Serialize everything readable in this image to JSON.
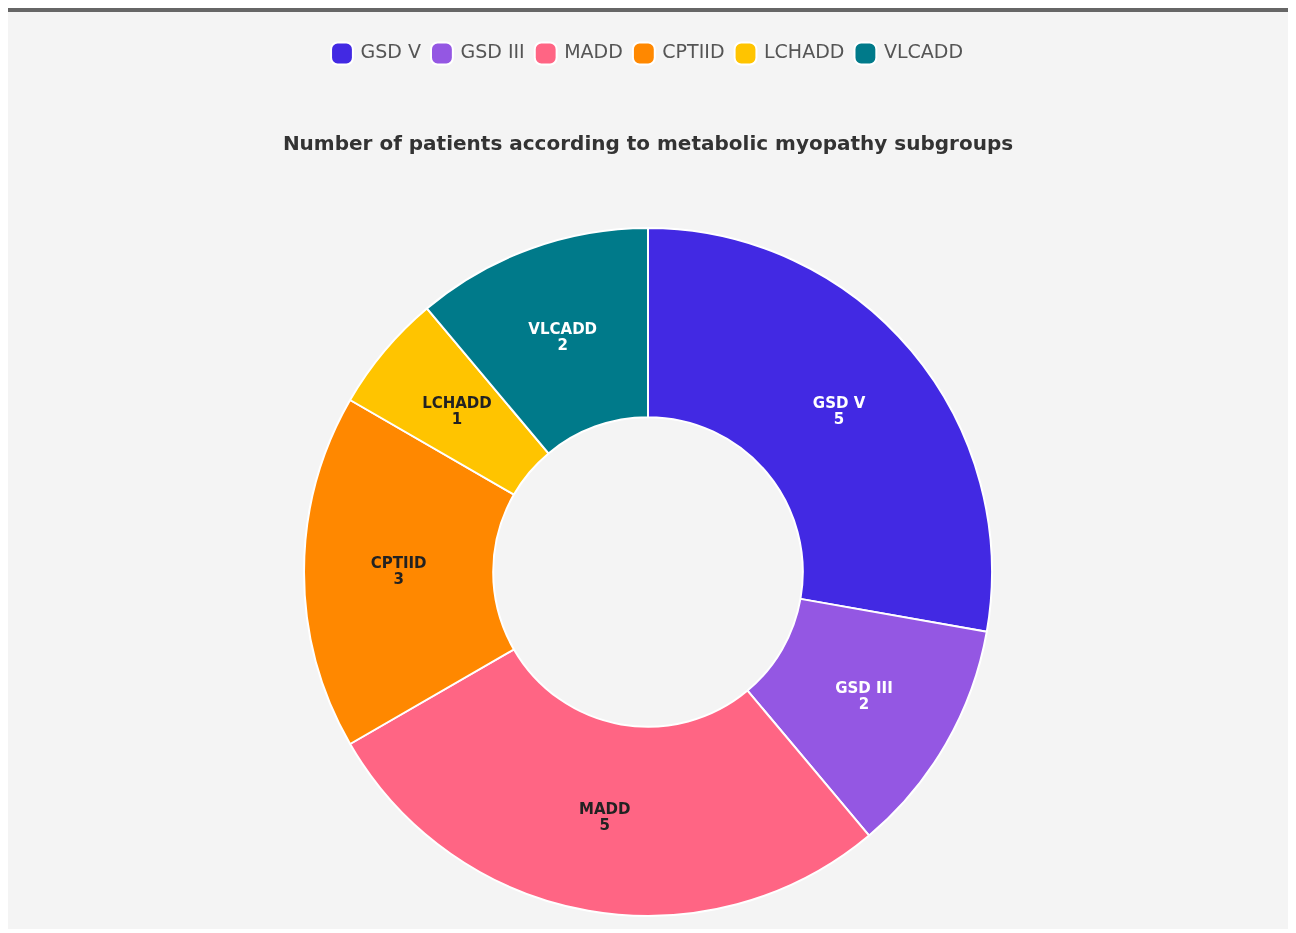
{
  "chart_data": {
    "type": "donut",
    "title": "Number of patients according to metabolic myopathy subgroups",
    "categories": [
      "GSD V",
      "GSD III",
      "MADD",
      "CPTIID",
      "LCHADD",
      "VLCADD"
    ],
    "values": [
      5,
      2,
      5,
      3,
      1,
      2
    ],
    "colors": [
      "#4229e3",
      "#9457e3",
      "#ff6584",
      "#ff8800",
      "#ffc400",
      "#007a8a"
    ],
    "legend": "top",
    "data_labels": true
  }
}
